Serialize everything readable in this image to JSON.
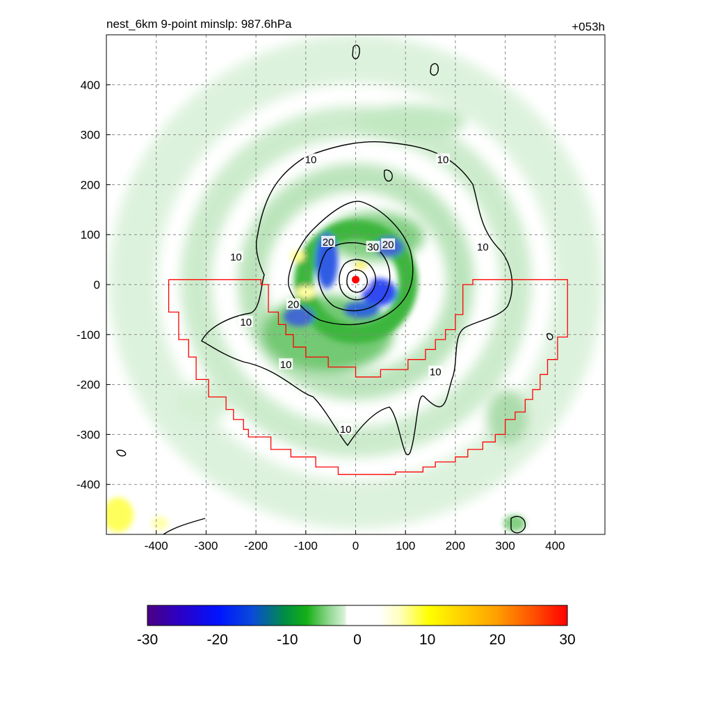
{
  "chart_data": {
    "type": "heatmap",
    "title": "nest_6km  9-point minslp: 987.6hPa",
    "time_label": "+053h",
    "xlabel": "",
    "ylabel": "",
    "xlim": [
      -500,
      500
    ],
    "ylim": [
      -500,
      500
    ],
    "x_ticks": [
      -400,
      -300,
      -200,
      -100,
      0,
      100,
      200,
      300,
      400
    ],
    "y_ticks": [
      400,
      300,
      200,
      100,
      0,
      -100,
      -200,
      -300,
      -400
    ],
    "grid": true,
    "colorbar": {
      "min": -30,
      "max": 30,
      "ticks": [
        -30,
        -20,
        -10,
        0,
        10,
        20,
        30
      ],
      "placement": "bottom"
    },
    "contour_labels": [
      {
        "text": "10",
        "x": -90,
        "y": 250
      },
      {
        "text": "10",
        "x": 175,
        "y": 250
      },
      {
        "text": "10",
        "x": -240,
        "y": 55
      },
      {
        "text": "10",
        "x": 255,
        "y": 75
      },
      {
        "text": "10",
        "x": -220,
        "y": -75
      },
      {
        "text": "10",
        "x": -140,
        "y": -160
      },
      {
        "text": "10",
        "x": 160,
        "y": -175
      },
      {
        "text": "10",
        "x": -20,
        "y": -290
      },
      {
        "text": "20",
        "x": -55,
        "y": 85
      },
      {
        "text": "30",
        "x": 35,
        "y": 75
      },
      {
        "text": "20",
        "x": 65,
        "y": 80
      },
      {
        "text": "20",
        "x": -125,
        "y": -40
      }
    ],
    "storm_center": {
      "x": 0,
      "y": 10
    },
    "boundary_polygon": [
      [
        -375,
        10
      ],
      [
        -190,
        10
      ],
      [
        -190,
        0
      ],
      [
        -175,
        0
      ],
      [
        -175,
        -55
      ],
      [
        -155,
        -55
      ],
      [
        -155,
        -80
      ],
      [
        -140,
        -80
      ],
      [
        -140,
        -100
      ],
      [
        -125,
        -100
      ],
      [
        -125,
        -125
      ],
      [
        -100,
        -125
      ],
      [
        -100,
        -145
      ],
      [
        -55,
        -145
      ],
      [
        -55,
        -165
      ],
      [
        0,
        -165
      ],
      [
        0,
        -185
      ],
      [
        50,
        -185
      ],
      [
        50,
        -170
      ],
      [
        105,
        -170
      ],
      [
        105,
        -150
      ],
      [
        140,
        -150
      ],
      [
        140,
        -130
      ],
      [
        160,
        -130
      ],
      [
        160,
        -110
      ],
      [
        180,
        -110
      ],
      [
        180,
        -90
      ],
      [
        200,
        -90
      ],
      [
        200,
        -60
      ],
      [
        215,
        -60
      ],
      [
        215,
        0
      ],
      [
        235,
        0
      ],
      [
        235,
        10
      ],
      [
        425,
        10
      ],
      [
        425,
        -105
      ],
      [
        405,
        -105
      ],
      [
        405,
        -150
      ],
      [
        385,
        -150
      ],
      [
        385,
        -180
      ],
      [
        370,
        -180
      ],
      [
        370,
        -210
      ],
      [
        355,
        -210
      ],
      [
        355,
        -230
      ],
      [
        340,
        -230
      ],
      [
        340,
        -255
      ],
      [
        320,
        -255
      ],
      [
        320,
        -270
      ],
      [
        300,
        -270
      ],
      [
        300,
        -300
      ],
      [
        280,
        -300
      ],
      [
        280,
        -315
      ],
      [
        255,
        -315
      ],
      [
        255,
        -330
      ],
      [
        225,
        -330
      ],
      [
        225,
        -345
      ],
      [
        200,
        -345
      ],
      [
        200,
        -355
      ],
      [
        160,
        -355
      ],
      [
        160,
        -365
      ],
      [
        135,
        -365
      ],
      [
        135,
        -375
      ],
      [
        80,
        -375
      ],
      [
        80,
        -380
      ],
      [
        -35,
        -380
      ],
      [
        -35,
        -365
      ],
      [
        -80,
        -365
      ],
      [
        -80,
        -345
      ],
      [
        -130,
        -345
      ],
      [
        -130,
        -330
      ],
      [
        -170,
        -330
      ],
      [
        -170,
        -305
      ],
      [
        -215,
        -305
      ],
      [
        -215,
        -290
      ],
      [
        -225,
        -290
      ],
      [
        -225,
        -270
      ],
      [
        -245,
        -270
      ],
      [
        -245,
        -250
      ],
      [
        -260,
        -250
      ],
      [
        -260,
        -225
      ],
      [
        -295,
        -225
      ],
      [
        -295,
        -190
      ],
      [
        -320,
        -190
      ],
      [
        -320,
        -145
      ],
      [
        -335,
        -145
      ],
      [
        -335,
        -110
      ],
      [
        -355,
        -110
      ],
      [
        -355,
        -55
      ],
      [
        -375,
        -55
      ],
      [
        -375,
        10
      ]
    ]
  }
}
